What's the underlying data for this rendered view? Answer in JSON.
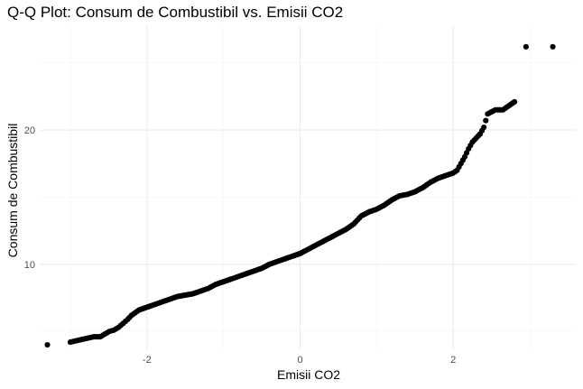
{
  "chart_data": {
    "type": "scatter",
    "title": "Q-Q Plot: Consum de Combustibil vs. Emisii CO2",
    "xlabel": "Emisii CO2",
    "ylabel": "Consum de Combustibil",
    "xlim": [
      -3.4,
      3.6
    ],
    "ylim": [
      3.6,
      27.8
    ],
    "x_ticks": [
      -2,
      0,
      2
    ],
    "x_tick_labels": [
      "-2",
      "0",
      "2"
    ],
    "y_ticks": [
      10,
      20
    ],
    "y_tick_labels": [
      "10",
      "20"
    ],
    "grid": true,
    "legend": "none",
    "point_color": "#000000",
    "series": [
      {
        "x": [
          -3.3,
          -3.0,
          -2.85,
          -2.77,
          -2.69,
          -2.61,
          -2.55,
          -2.49,
          -2.43,
          -2.37,
          -2.31,
          -2.25,
          -2.2,
          -2.15,
          -2.1,
          -2.05,
          -2.0,
          -1.95,
          -1.9,
          -1.85,
          -1.8,
          -1.7,
          -1.6,
          -1.5,
          -1.4,
          -1.3,
          -1.2,
          -1.1,
          -1.0,
          -0.9,
          -0.8,
          -0.7,
          -0.6,
          -0.5,
          -0.4,
          -0.3,
          -0.2,
          -0.1,
          0.0,
          0.1,
          0.2,
          0.3,
          0.4,
          0.5,
          0.6,
          0.7,
          0.8,
          0.9,
          1.0,
          1.1,
          1.2,
          1.3,
          1.4,
          1.5,
          1.6,
          1.7,
          1.8,
          1.9,
          2.0,
          2.05,
          2.1,
          2.15,
          2.2,
          2.25,
          2.3,
          2.35,
          2.4,
          2.45,
          2.55,
          2.65,
          2.8,
          2.95,
          3.3
        ],
        "y": [
          4.0,
          4.2,
          4.4,
          4.5,
          4.6,
          4.6,
          4.8,
          5.0,
          5.1,
          5.3,
          5.6,
          5.9,
          6.2,
          6.4,
          6.6,
          6.7,
          6.8,
          6.9,
          7.0,
          7.1,
          7.2,
          7.4,
          7.6,
          7.7,
          7.8,
          8.0,
          8.2,
          8.5,
          8.7,
          8.9,
          9.1,
          9.3,
          9.5,
          9.7,
          10.0,
          10.2,
          10.4,
          10.6,
          10.8,
          11.1,
          11.4,
          11.7,
          12.0,
          12.3,
          12.6,
          13.0,
          13.6,
          13.9,
          14.1,
          14.4,
          14.8,
          15.1,
          15.2,
          15.4,
          15.7,
          16.1,
          16.4,
          16.6,
          16.8,
          17.0,
          17.5,
          18.0,
          18.6,
          19.1,
          19.4,
          19.7,
          20.2,
          21.2,
          21.5,
          21.5,
          22.1,
          26.2,
          26.2
        ]
      }
    ]
  }
}
